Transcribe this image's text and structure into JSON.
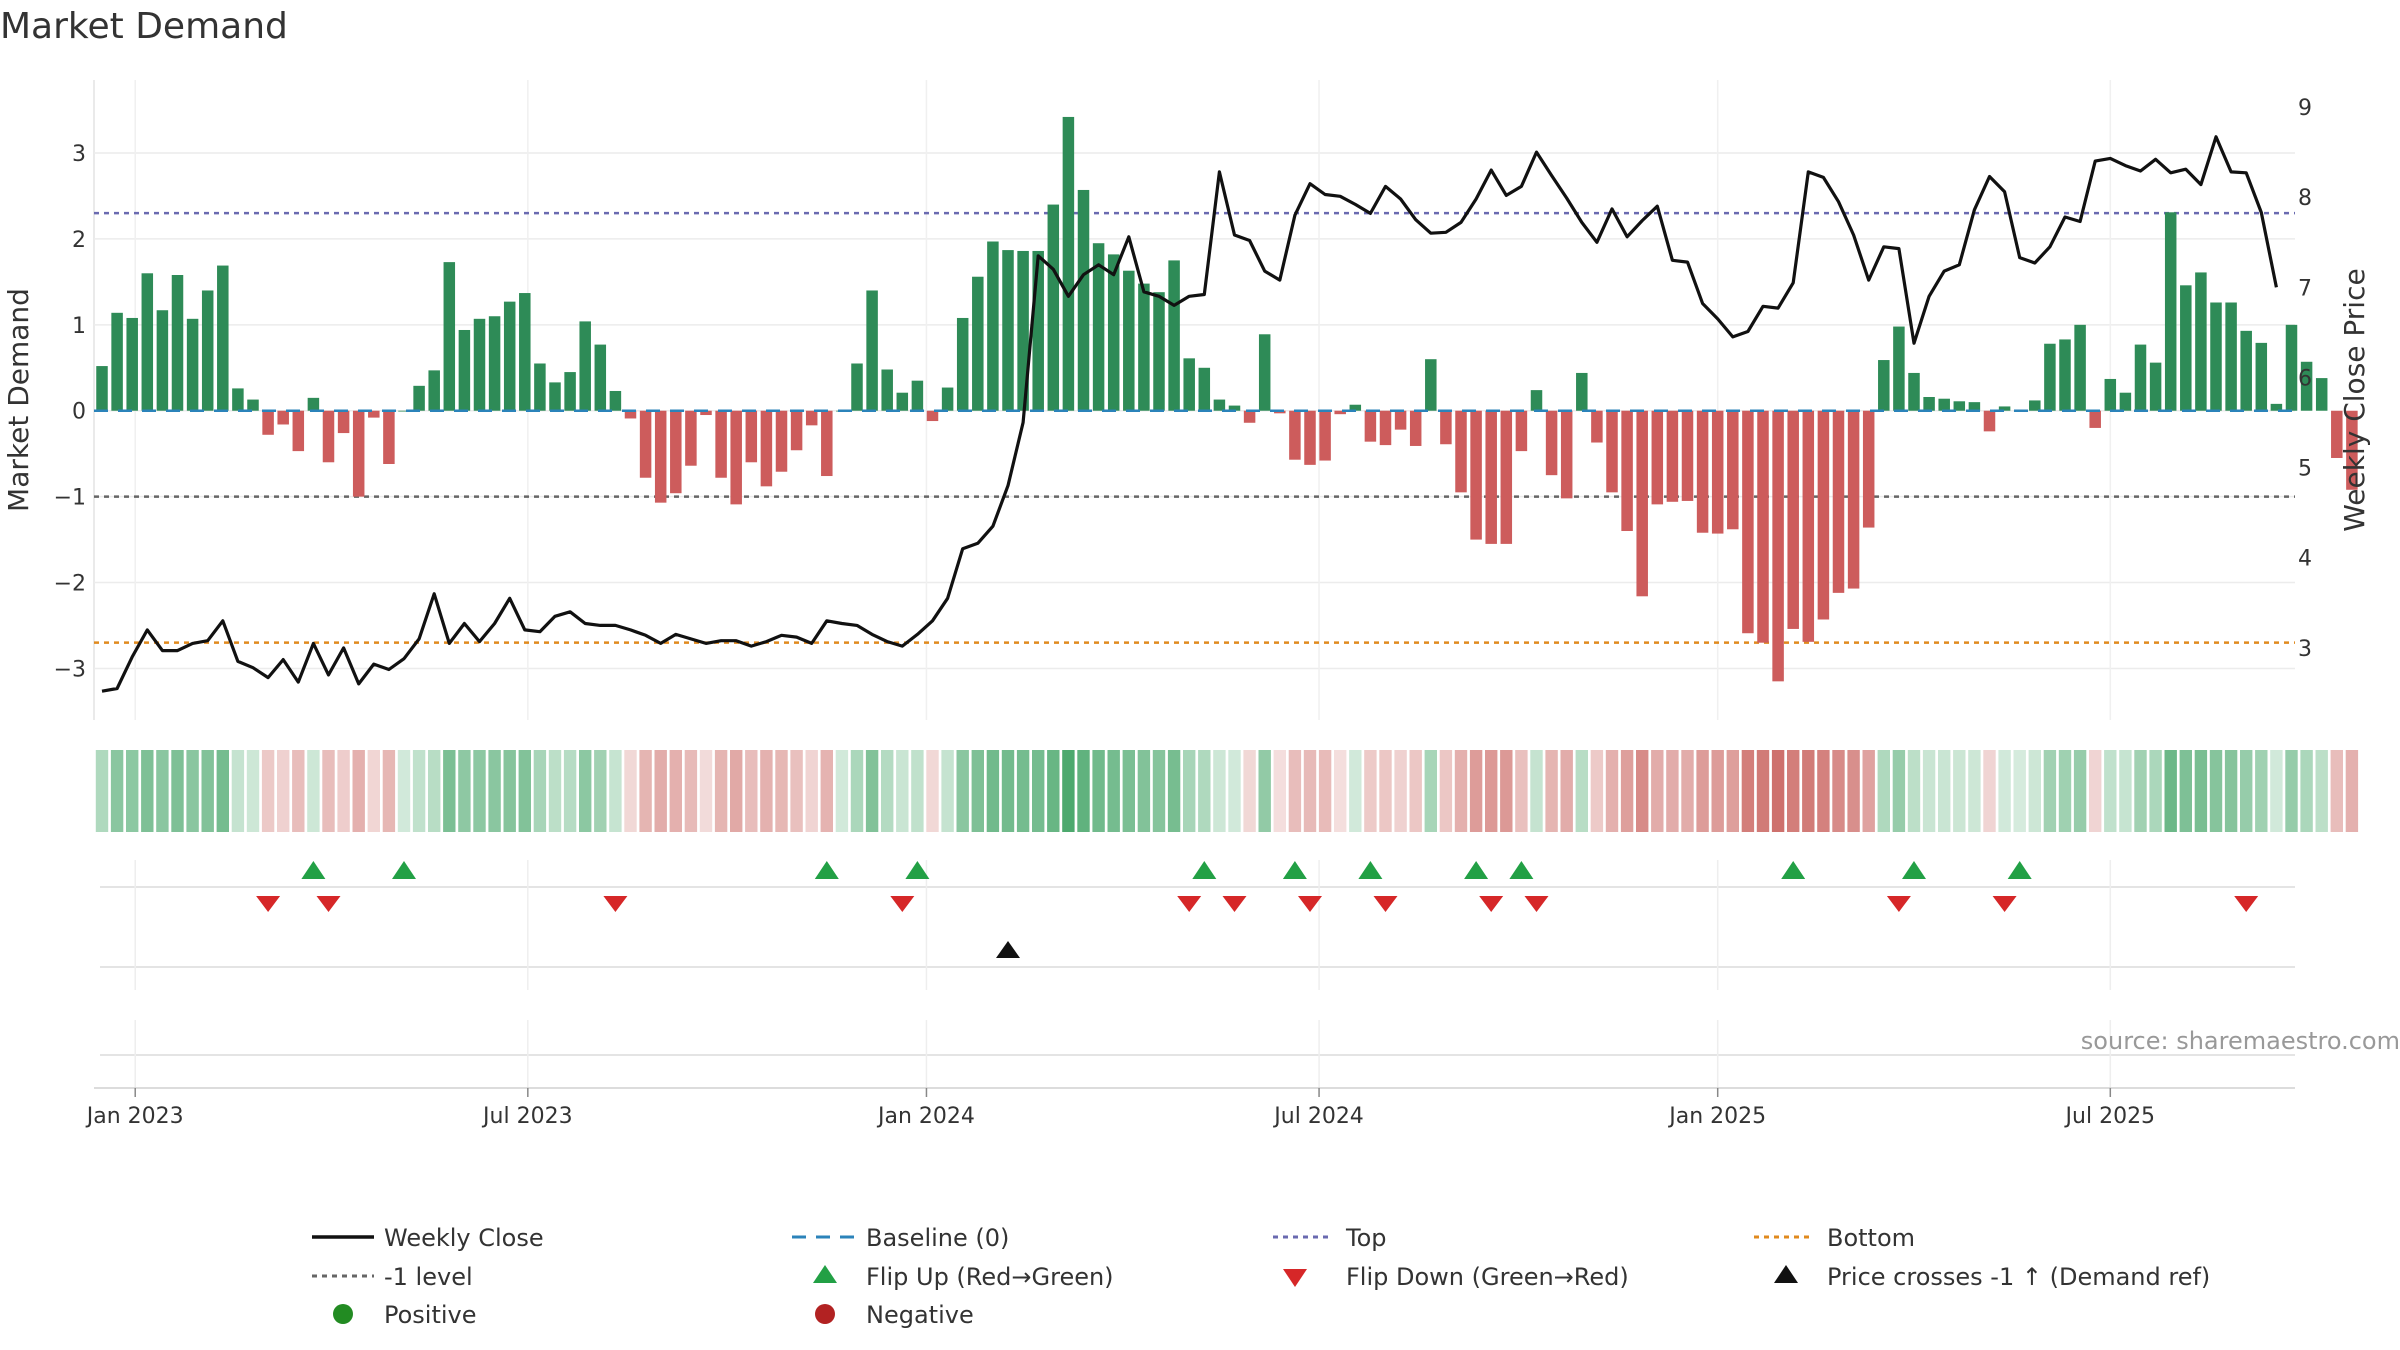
{
  "chart_data": {
    "type": "bar",
    "title": "Market Demand",
    "ylabel_left": "Market Demand",
    "ylabel_right": "Weekly Close Price",
    "ylim_left": [
      -3.6,
      3.85
    ],
    "ylim_right": [
      2.2,
      9.3
    ],
    "left_ticks": [
      3,
      2,
      1,
      0,
      -1,
      -2,
      -3
    ],
    "left_tick_labels": [
      "3",
      "2",
      "1",
      "0",
      "−1",
      "−2",
      "−3"
    ],
    "right_ticks": [
      9,
      8,
      7,
      6,
      5,
      4,
      3
    ],
    "right_tick_labels": [
      "9",
      "8",
      "7",
      "6",
      "5",
      "4",
      "3"
    ],
    "x_tick_labels": [
      "Jan 2023",
      "Jul 2023",
      "Jan 2024",
      "Jul 2024",
      "Jan 2025",
      "Jul 2025"
    ],
    "x_tick_weeks": [
      2.2,
      28.2,
      54.6,
      80.6,
      107.0,
      133.0
    ],
    "reference_lines": [
      {
        "name": "Top",
        "value": 2.3,
        "color": "#6a6ab0"
      },
      {
        "name": "-1 level",
        "value": -1,
        "color": "#666666"
      },
      {
        "name": "Bottom",
        "value": -2.7,
        "color": "#e08a1e"
      },
      {
        "name": "Baseline (0)",
        "value": 0,
        "color": "#2b83ba"
      }
    ],
    "colors": {
      "positive": "#2e8b57",
      "negative": "#cd5c5c",
      "price": "#111111",
      "flip_up": "#22a045",
      "flip_down": "#d62728",
      "cross": "#111111"
    },
    "demand": [
      0.52,
      1.14,
      1.08,
      1.6,
      1.17,
      1.58,
      1.07,
      1.4,
      1.69,
      0.26,
      0.13,
      -0.28,
      -0.16,
      -0.47,
      0.15,
      -0.6,
      -0.26,
      -1.0,
      -0.08,
      -0.62,
      0.0,
      0.29,
      0.47,
      1.73,
      0.94,
      1.07,
      1.1,
      1.27,
      1.37,
      0.55,
      0.33,
      0.45,
      1.04,
      0.77,
      0.23,
      -0.09,
      -0.78,
      -1.07,
      -0.96,
      -0.64,
      -0.05,
      -0.78,
      -1.09,
      -0.6,
      -0.88,
      -0.71,
      -0.46,
      -0.17,
      -0.76,
      0.0,
      0.55,
      1.4,
      0.48,
      0.21,
      0.35,
      -0.12,
      0.27,
      1.08,
      1.56,
      1.97,
      1.87,
      1.86,
      1.86,
      2.4,
      3.42,
      2.57,
      1.95,
      1.82,
      1.63,
      1.48,
      1.38,
      1.75,
      0.61,
      0.5,
      0.13,
      0.06,
      -0.14,
      0.89,
      -0.03,
      -0.57,
      -0.63,
      -0.58,
      -0.04,
      0.07,
      -0.36,
      -0.4,
      -0.22,
      -0.41,
      0.6,
      -0.39,
      -0.95,
      -1.5,
      -1.55,
      -1.55,
      -0.47,
      0.24,
      -0.75,
      -1.02,
      0.44,
      -0.37,
      -0.95,
      -1.4,
      -2.16,
      -1.09,
      -1.06,
      -1.05,
      -1.42,
      -1.43,
      -1.38,
      -2.59,
      -2.7,
      -3.15,
      -2.54,
      -2.69,
      -2.43,
      -2.12,
      -2.07,
      -1.36,
      0.59,
      0.98,
      0.44,
      0.16,
      0.14,
      0.11,
      0.1,
      -0.24,
      0.05,
      0.0,
      0.12,
      0.78,
      0.83,
      1.0,
      -0.2,
      0.37,
      0.21,
      0.77,
      0.56,
      2.31,
      1.46,
      1.61,
      1.26,
      1.26,
      0.93,
      0.79,
      0.08,
      1.0,
      0.57,
      0.38,
      -0.55,
      -0.92
    ],
    "weekly_close": [
      2.52,
      2.55,
      2.9,
      3.2,
      2.97,
      2.97,
      3.05,
      3.08,
      3.3,
      2.85,
      2.78,
      2.67,
      2.87,
      2.62,
      3.05,
      2.7,
      3.0,
      2.6,
      2.82,
      2.76,
      2.88,
      3.1,
      3.6,
      3.05,
      3.27,
      3.07,
      3.27,
      3.55,
      3.2,
      3.18,
      3.35,
      3.4,
      3.27,
      3.25,
      3.25,
      3.2,
      3.14,
      3.05,
      3.15,
      3.1,
      3.05,
      3.08,
      3.08,
      3.02,
      3.07,
      3.14,
      3.12,
      3.05,
      3.3,
      3.27,
      3.25,
      3.15,
      3.07,
      3.02,
      3.15,
      3.3,
      3.55,
      4.1,
      4.16,
      4.35,
      4.8,
      5.5,
      7.35,
      7.2,
      6.9,
      7.14,
      7.25,
      7.14,
      7.56,
      6.95,
      6.9,
      6.8,
      6.9,
      6.92,
      8.28,
      7.58,
      7.52,
      7.18,
      7.08,
      7.8,
      8.15,
      8.03,
      8.01,
      7.92,
      7.82,
      8.12,
      7.98,
      7.75,
      7.6,
      7.61,
      7.72,
      7.98,
      8.3,
      8.02,
      8.12,
      8.5,
      8.24,
      7.99,
      7.72,
      7.5,
      7.87,
      7.56,
      7.74,
      7.9,
      7.3,
      7.28,
      6.82,
      6.65,
      6.45,
      6.51,
      6.79,
      6.77,
      7.05,
      8.28,
      8.22,
      7.95,
      7.58,
      7.08,
      7.45,
      7.43,
      6.38,
      6.9,
      7.18,
      7.25,
      7.86,
      8.23,
      8.06,
      7.33,
      7.27,
      7.45,
      7.78,
      7.73,
      8.4,
      8.43,
      8.35,
      8.29,
      8.42,
      8.27,
      8.31,
      8.14,
      8.67,
      8.28,
      8.27,
      7.83,
      7.0
    ],
    "flip_up_weeks": [
      14,
      20,
      48,
      54,
      73,
      79,
      84,
      91,
      94,
      112,
      120,
      127
    ],
    "flip_down_weeks": [
      11,
      15,
      34,
      53,
      72,
      75,
      80,
      85,
      92,
      95,
      119,
      126,
      142
    ],
    "price_cross_weeks": [
      60
    ],
    "strip_opacity": [
      0.38,
      0.56,
      0.55,
      0.62,
      0.56,
      0.62,
      0.56,
      0.6,
      0.66,
      0.28,
      0.24,
      0.33,
      0.28,
      0.4,
      0.24,
      0.4,
      0.3,
      0.48,
      0.25,
      0.44,
      0.22,
      0.3,
      0.34,
      0.63,
      0.54,
      0.55,
      0.56,
      0.58,
      0.6,
      0.42,
      0.32,
      0.35,
      0.55,
      0.45,
      0.27,
      0.24,
      0.45,
      0.5,
      0.48,
      0.42,
      0.22,
      0.45,
      0.52,
      0.4,
      0.47,
      0.44,
      0.38,
      0.26,
      0.46,
      0.22,
      0.4,
      0.6,
      0.36,
      0.26,
      0.3,
      0.24,
      0.28,
      0.56,
      0.62,
      0.68,
      0.67,
      0.66,
      0.66,
      0.72,
      0.85,
      0.76,
      0.68,
      0.66,
      0.63,
      0.6,
      0.58,
      0.65,
      0.42,
      0.38,
      0.24,
      0.22,
      0.24,
      0.52,
      0.2,
      0.4,
      0.42,
      0.41,
      0.2,
      0.22,
      0.32,
      0.34,
      0.28,
      0.34,
      0.42,
      0.34,
      0.48,
      0.6,
      0.62,
      0.62,
      0.38,
      0.28,
      0.45,
      0.5,
      0.34,
      0.32,
      0.48,
      0.58,
      0.7,
      0.5,
      0.5,
      0.5,
      0.6,
      0.6,
      0.58,
      0.78,
      0.8,
      0.86,
      0.78,
      0.8,
      0.76,
      0.7,
      0.68,
      0.56,
      0.38,
      0.5,
      0.32,
      0.26,
      0.26,
      0.25,
      0.24,
      0.26,
      0.22,
      0.2,
      0.24,
      0.45,
      0.46,
      0.5,
      0.26,
      0.3,
      0.27,
      0.45,
      0.4,
      0.7,
      0.62,
      0.64,
      0.58,
      0.58,
      0.5,
      0.46,
      0.22,
      0.5,
      0.4,
      0.32,
      0.4,
      0.48
    ]
  },
  "legend": {
    "items": [
      "Weekly Close",
      "Baseline (0)",
      "Top",
      "Bottom",
      "-1 level",
      "Flip Up (Red→Green)",
      "Flip Down (Green→Red)",
      "Price crosses -1 ↑ (Demand ref)",
      "Positive",
      "Negative"
    ]
  },
  "source": "source: sharemaestro.com"
}
